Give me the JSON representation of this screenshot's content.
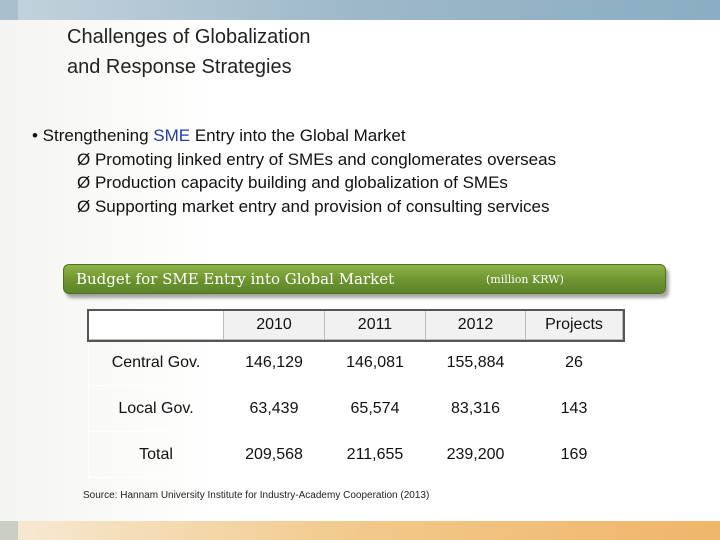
{
  "title": {
    "line1": "Challenges of Globalization",
    "line2": "and Response Strategies"
  },
  "bullets": {
    "main_prefix": "• Strengthening ",
    "main_highlight": "SME",
    "main_suffix": " Entry into the Global Market",
    "subs": [
      "Ø Promoting linked entry of SMEs and conglomerates overseas",
      "Ø Production capacity building and globalization of SMEs",
      "Ø Supporting market entry and provision of consulting services"
    ]
  },
  "banner": {
    "title": "Budget for SME Entry into Global Market",
    "unit": "(million KRW)"
  },
  "table": {
    "headers": [
      "",
      "2010",
      "2011",
      "2012",
      "Projects"
    ],
    "rows": [
      [
        "Central Gov.",
        "146,129",
        "146,081",
        "155,884",
        "26"
      ],
      [
        "Local Gov.",
        "63,439",
        "65,574",
        "83,316",
        "143"
      ],
      [
        "Total",
        "209,568",
        "211,655",
        "239,200",
        "169"
      ]
    ]
  },
  "source": "Source: Hannam University Institute for Industry-Academy Cooperation (2013)",
  "colors": {
    "sme_highlight": "#233aa8",
    "banner_green": "#6d9430",
    "top_bar": "#9db8c9",
    "bottom_bar": "#f2c98a"
  }
}
